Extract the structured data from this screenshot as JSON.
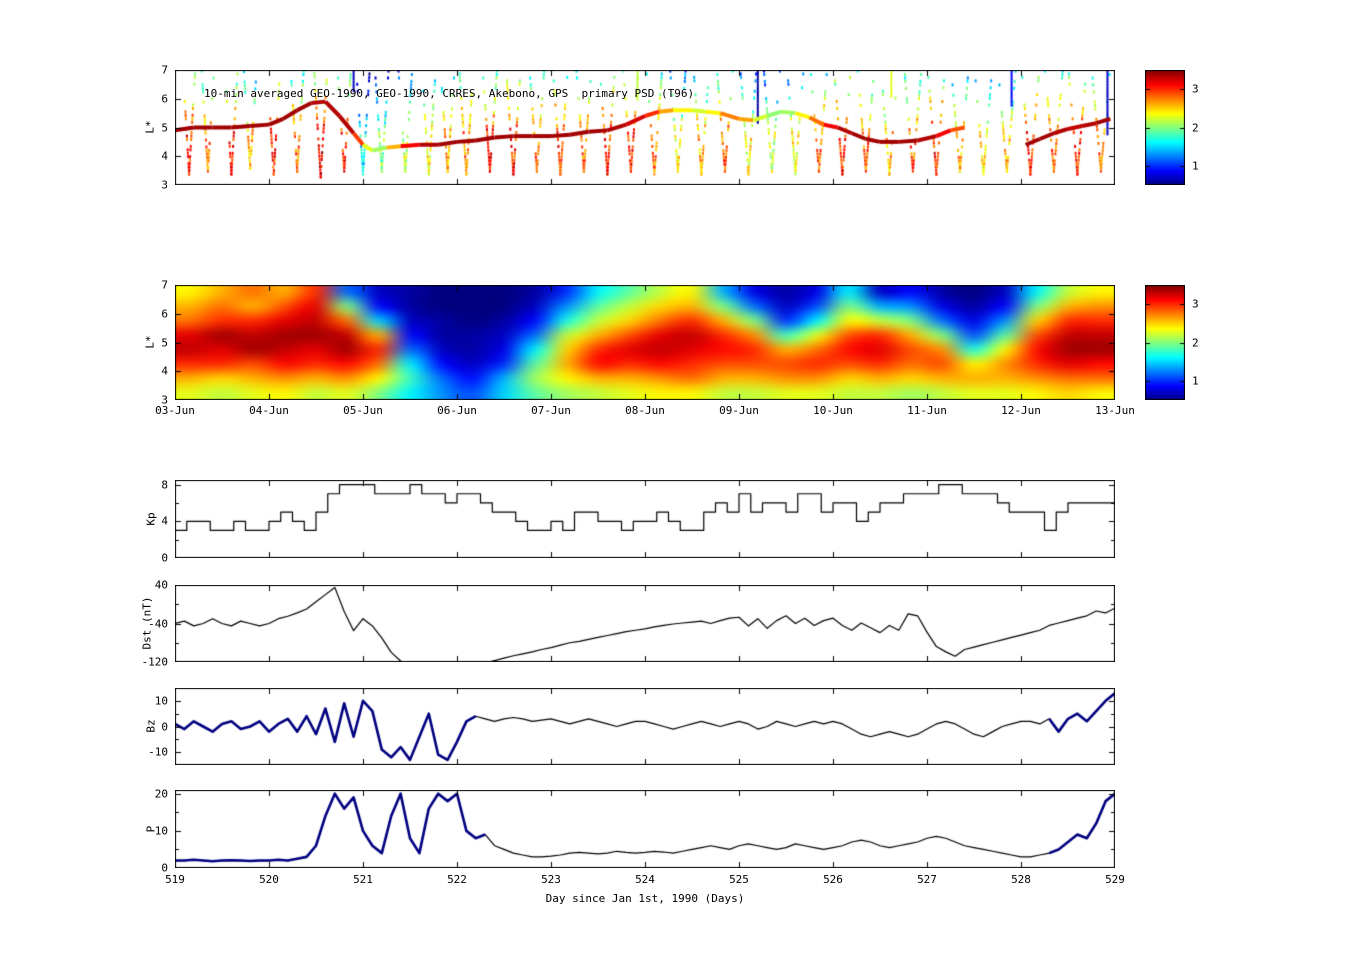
{
  "figure": {
    "background": "#ffffff",
    "accent_line_color": "#000080",
    "line_color": "#000000"
  },
  "xaxis": {
    "label": "Day since Jan 1st, 1990 (Days)",
    "tick_labels": [
      "519",
      "520",
      "521",
      "522",
      "523",
      "524",
      "525",
      "526",
      "527",
      "528",
      "529"
    ]
  },
  "chart_data": [
    {
      "id": "psd-scatter",
      "type": "scatter",
      "title": "10-min averaged GEO-1990, GEO-1990, CRRES, Akebono, GPS  primary PSD (T96)",
      "ylabel": "L*",
      "xlim": [
        519,
        529
      ],
      "ylim": [
        3,
        7
      ],
      "yticks": [
        3,
        4,
        5,
        6,
        7
      ],
      "colorbar": {
        "vmin": 0.5,
        "vmax": 3.5,
        "ticks": [
          1,
          2,
          3
        ]
      },
      "tracks": [
        [
          [
            519.0,
            4.9,
            3.4
          ],
          [
            519.2,
            5.0,
            3.4
          ],
          [
            519.4,
            5.0,
            3.4
          ],
          [
            519.6,
            5.0,
            3.4
          ],
          [
            519.8,
            5.05,
            3.4
          ],
          [
            520.0,
            5.1,
            3.4
          ],
          [
            520.15,
            5.3,
            3.4
          ],
          [
            520.3,
            5.6,
            3.4
          ],
          [
            520.45,
            5.85,
            3.4
          ],
          [
            520.6,
            5.9,
            3.3
          ],
          [
            520.75,
            5.4,
            3.4
          ],
          [
            520.9,
            4.8,
            3.3
          ],
          [
            521.0,
            4.4,
            2.6
          ],
          [
            521.1,
            4.2,
            2.0
          ],
          [
            521.25,
            4.3,
            2.2
          ],
          [
            521.4,
            4.35,
            3.0
          ],
          [
            521.6,
            4.4,
            3.3
          ],
          [
            521.8,
            4.4,
            3.4
          ],
          [
            522.0,
            4.5,
            3.4
          ],
          [
            522.2,
            4.55,
            3.4
          ],
          [
            522.4,
            4.65,
            3.4
          ],
          [
            522.6,
            4.7,
            3.4
          ],
          [
            522.8,
            4.7,
            3.4
          ],
          [
            523.0,
            4.7,
            3.4
          ],
          [
            523.2,
            4.75,
            3.4
          ],
          [
            523.4,
            4.85,
            3.4
          ],
          [
            523.6,
            4.9,
            3.4
          ],
          [
            523.8,
            5.1,
            3.3
          ],
          [
            524.0,
            5.4,
            3.2
          ],
          [
            524.15,
            5.55,
            2.8
          ],
          [
            524.3,
            5.6,
            2.5
          ],
          [
            524.5,
            5.6,
            2.3
          ],
          [
            524.65,
            5.55,
            2.2
          ],
          [
            524.8,
            5.5,
            2.6
          ],
          [
            525.0,
            5.3,
            2.9
          ],
          [
            525.15,
            5.25,
            2.4
          ],
          [
            525.3,
            5.4,
            2.1
          ],
          [
            525.45,
            5.55,
            2.0
          ],
          [
            525.6,
            5.5,
            2.2
          ],
          [
            525.75,
            5.35,
            2.6
          ],
          [
            525.9,
            5.1,
            3.0
          ],
          [
            526.05,
            5.0,
            3.3
          ],
          [
            526.2,
            4.8,
            3.4
          ],
          [
            526.35,
            4.6,
            3.4
          ],
          [
            526.5,
            4.5,
            3.4
          ],
          [
            526.7,
            4.5,
            3.4
          ],
          [
            526.9,
            4.55,
            3.4
          ],
          [
            527.1,
            4.7,
            3.3
          ],
          [
            527.25,
            4.9,
            3.0
          ],
          [
            527.4,
            5.0,
            2.8
          ]
        ],
        [
          [
            528.05,
            4.4,
            3.4
          ],
          [
            528.2,
            4.6,
            3.4
          ],
          [
            528.35,
            4.8,
            3.4
          ],
          [
            528.5,
            4.95,
            3.3
          ],
          [
            528.65,
            5.05,
            3.3
          ],
          [
            528.8,
            5.15,
            3.4
          ],
          [
            528.95,
            5.3,
            3.4
          ]
        ]
      ],
      "passes": [
        [
          519.15,
          3.4,
          3.0
        ],
        [
          519.35,
          3.5,
          2.8
        ],
        [
          519.6,
          3.4,
          3.0
        ],
        [
          519.8,
          3.6,
          2.6
        ],
        [
          520.05,
          3.4,
          3.0
        ],
        [
          520.3,
          3.5,
          2.8
        ],
        [
          520.55,
          3.3,
          3.2
        ],
        [
          520.8,
          3.5,
          3.0
        ],
        [
          521.0,
          3.4,
          1.6
        ],
        [
          521.2,
          3.5,
          2.0
        ],
        [
          521.45,
          3.5,
          2.2
        ],
        [
          521.7,
          3.4,
          2.4
        ],
        [
          521.9,
          3.5,
          2.6
        ],
        [
          522.1,
          3.4,
          2.8
        ],
        [
          522.35,
          3.5,
          3.0
        ],
        [
          522.6,
          3.4,
          3.0
        ],
        [
          522.85,
          3.5,
          2.8
        ],
        [
          523.1,
          3.4,
          3.0
        ],
        [
          523.35,
          3.5,
          2.8
        ],
        [
          523.6,
          3.4,
          3.0
        ],
        [
          523.85,
          3.5,
          3.0
        ],
        [
          524.1,
          3.4,
          2.8
        ],
        [
          524.35,
          3.5,
          2.4
        ],
        [
          524.6,
          3.4,
          2.6
        ],
        [
          524.85,
          3.5,
          2.8
        ],
        [
          525.1,
          3.4,
          2.4
        ],
        [
          525.35,
          3.5,
          2.2
        ],
        [
          525.6,
          3.4,
          2.4
        ],
        [
          525.85,
          3.5,
          2.8
        ],
        [
          526.1,
          3.4,
          3.0
        ],
        [
          526.35,
          3.5,
          2.8
        ],
        [
          526.6,
          3.4,
          2.6
        ],
        [
          526.85,
          3.5,
          2.8
        ],
        [
          527.1,
          3.4,
          3.0
        ],
        [
          527.35,
          3.5,
          2.6
        ],
        [
          527.6,
          3.4,
          2.4
        ],
        [
          527.85,
          3.5,
          2.6
        ],
        [
          528.1,
          3.4,
          3.0
        ],
        [
          528.35,
          3.5,
          2.8
        ],
        [
          528.6,
          3.4,
          3.0
        ],
        [
          528.85,
          3.5,
          2.8
        ]
      ],
      "dashes": [
        [
          520.9,
          6.3,
          7.0,
          0.7
        ],
        [
          523.92,
          6.0,
          7.0,
          2.2
        ],
        [
          525.2,
          5.2,
          7.0,
          0.6
        ],
        [
          526.62,
          6.1,
          7.0,
          2.3
        ],
        [
          527.9,
          5.8,
          7.0,
          0.9
        ],
        [
          528.92,
          4.8,
          7.0,
          0.7
        ]
      ]
    },
    {
      "id": "psd-heatmap",
      "type": "heatmap",
      "ylabel": "L*",
      "xlim": [
        519,
        529
      ],
      "ylim": [
        3,
        7
      ],
      "yticks": [
        3,
        4,
        5,
        6,
        7
      ],
      "xtick_labels": [
        "03-Jun",
        "04-Jun",
        "05-Jun",
        "06-Jun",
        "07-Jun",
        "08-Jun",
        "09-Jun",
        "10-Jun",
        "11-Jun",
        "12-Jun",
        "13-Jun"
      ],
      "colorbar": {
        "vmin": 0.5,
        "vmax": 3.5,
        "ticks": [
          1,
          2,
          3
        ]
      },
      "grid_rows_top_to_bottom": [
        [
          2.4,
          2.6,
          2.8,
          2.6,
          3.0,
          1.2,
          0.7,
          0.6,
          0.5,
          0.5,
          0.5,
          0.6,
          1.0,
          1.6,
          1.9,
          2.2,
          2.4,
          1.4,
          0.8,
          0.6,
          0.8,
          1.6,
          0.7,
          0.9,
          0.6,
          0.5,
          0.7,
          1.6,
          2.2,
          2.4
        ],
        [
          2.6,
          2.8,
          2.6,
          2.9,
          3.2,
          2.0,
          0.9,
          0.6,
          0.5,
          0.5,
          0.5,
          0.7,
          1.3,
          1.9,
          2.2,
          2.5,
          2.6,
          2.0,
          1.2,
          0.7,
          1.1,
          2.0,
          1.4,
          1.3,
          0.8,
          0.6,
          0.9,
          2.0,
          2.6,
          2.7
        ],
        [
          2.8,
          3.0,
          3.0,
          3.2,
          3.3,
          2.8,
          1.5,
          0.7,
          0.6,
          0.5,
          0.6,
          0.9,
          1.7,
          2.2,
          2.5,
          2.8,
          3.0,
          2.6,
          2.0,
          1.0,
          1.6,
          2.4,
          2.2,
          2.0,
          1.2,
          0.8,
          1.3,
          2.5,
          3.0,
          3.0
        ],
        [
          3.2,
          3.4,
          3.3,
          3.4,
          3.4,
          3.3,
          2.6,
          0.9,
          0.6,
          0.6,
          0.7,
          1.2,
          2.2,
          2.6,
          2.9,
          3.2,
          3.3,
          3.0,
          2.7,
          1.8,
          2.3,
          2.9,
          3.0,
          2.6,
          2.0,
          1.1,
          1.9,
          2.9,
          3.3,
          3.3
        ],
        [
          3.3,
          3.2,
          3.4,
          3.3,
          3.2,
          3.4,
          3.0,
          1.2,
          0.7,
          0.6,
          0.8,
          1.6,
          2.5,
          3.0,
          3.2,
          3.3,
          3.2,
          3.1,
          3.0,
          2.6,
          2.8,
          3.1,
          3.2,
          2.9,
          2.7,
          1.7,
          2.4,
          3.1,
          3.4,
          3.4
        ],
        [
          3.0,
          3.0,
          2.9,
          3.1,
          3.0,
          3.1,
          2.8,
          1.6,
          0.9,
          0.7,
          1.0,
          1.9,
          2.6,
          3.1,
          3.0,
          3.1,
          3.0,
          2.9,
          2.9,
          2.9,
          3.0,
          2.9,
          3.0,
          2.8,
          2.9,
          2.4,
          2.7,
          3.0,
          3.2,
          3.1
        ],
        [
          2.6,
          2.5,
          2.6,
          2.7,
          2.6,
          2.7,
          2.4,
          1.8,
          1.2,
          0.9,
          1.4,
          2.1,
          2.4,
          2.6,
          2.6,
          2.7,
          2.8,
          2.6,
          2.6,
          2.7,
          2.7,
          2.5,
          2.6,
          2.5,
          2.6,
          2.6,
          2.6,
          2.7,
          2.8,
          2.8
        ],
        [
          2.3,
          2.2,
          2.3,
          2.4,
          2.2,
          2.3,
          2.0,
          1.6,
          1.3,
          1.1,
          1.5,
          1.9,
          2.1,
          2.2,
          2.3,
          2.4,
          2.4,
          2.2,
          2.2,
          2.3,
          2.3,
          2.2,
          2.2,
          2.1,
          2.2,
          2.3,
          2.3,
          2.4,
          2.5,
          2.4
        ]
      ]
    },
    {
      "id": "kp",
      "type": "line",
      "ylabel": "Kp",
      "xlim": [
        519,
        529
      ],
      "ylim": [
        0,
        8.5
      ],
      "yticks": [
        0,
        4,
        8
      ],
      "yticks_minor": [
        2,
        6
      ],
      "step": true,
      "x0": 519,
      "dx": 0.125,
      "y": [
        3,
        4,
        4,
        3,
        3,
        4,
        3,
        3,
        4,
        5,
        4,
        3,
        5,
        7,
        8,
        8,
        8,
        7,
        7,
        7,
        8,
        7,
        7,
        6,
        7,
        7,
        6,
        5,
        5,
        4,
        3,
        3,
        4,
        3,
        5,
        5,
        4,
        4,
        3,
        4,
        4,
        5,
        4,
        3,
        3,
        5,
        6,
        5,
        7,
        5,
        6,
        6,
        5,
        7,
        7,
        5,
        6,
        6,
        4,
        5,
        6,
        6,
        7,
        7,
        7,
        8,
        8,
        7,
        7,
        7,
        6,
        5,
        5,
        5,
        3,
        5,
        6,
        6,
        6,
        6
      ]
    },
    {
      "id": "dst",
      "type": "line",
      "ylabel": "Dst (nT)",
      "xlim": [
        519,
        529
      ],
      "ylim": [
        -120,
        40
      ],
      "yticks": [
        -120,
        -40,
        40
      ],
      "yticks_minor": [
        -80,
        0
      ],
      "step": false,
      "x0": 519,
      "dx": 0.1,
      "y": [
        -40,
        -35,
        -45,
        -40,
        -30,
        -40,
        -45,
        -35,
        -40,
        -45,
        -40,
        -30,
        -25,
        -18,
        -10,
        5,
        20,
        35,
        -15,
        -55,
        -30,
        -45,
        -70,
        -100,
        -118,
        -126,
        -124,
        -127,
        -122,
        -126,
        -128,
        -124,
        -126,
        -122,
        -117,
        -112,
        -107,
        -103,
        -99,
        -94,
        -90,
        -85,
        -80,
        -77,
        -73,
        -69,
        -65,
        -61,
        -57,
        -54,
        -51,
        -47,
        -44,
        -41,
        -39,
        -37,
        -35,
        -40,
        -34,
        -29,
        -27,
        -45,
        -30,
        -50,
        -34,
        -24,
        -40,
        -29,
        -44,
        -34,
        -29,
        -44,
        -54,
        -39,
        -49,
        -59,
        -44,
        -54,
        -20,
        -24,
        -58,
        -88,
        -99,
        -108,
        -94,
        -89,
        -84,
        -79,
        -74,
        -69,
        -64,
        -59,
        -54,
        -44,
        -39,
        -34,
        -29,
        -24,
        -14,
        -18,
        -8
      ]
    },
    {
      "id": "bz",
      "type": "line",
      "ylabel": "Bz",
      "xlim": [
        519,
        529
      ],
      "ylim": [
        -15,
        15
      ],
      "yticks": [
        -10,
        0,
        10
      ],
      "yticks_minor": [
        -5,
        5
      ],
      "step": false,
      "x0": 519,
      "dx": 0.1,
      "thick_ranges": [
        [
          519,
          522.25
        ],
        [
          528.3,
          529
        ]
      ],
      "thick_color": "#000080",
      "y": [
        1,
        -1,
        2,
        0,
        -2,
        1,
        2,
        -1,
        0,
        2,
        -2,
        1,
        3,
        -2,
        4,
        -3,
        7,
        -6,
        9,
        -4,
        10,
        6,
        -9,
        -12,
        -8,
        -13,
        -4,
        5,
        -11,
        -13,
        -6,
        2,
        4,
        3,
        2,
        3,
        3.5,
        3,
        2,
        2.5,
        3,
        2,
        1,
        2,
        3,
        2,
        1,
        0,
        1,
        2,
        2,
        1,
        0,
        -1,
        0,
        1,
        2,
        1,
        0,
        1,
        2,
        1,
        -1,
        0,
        2,
        1,
        0,
        1,
        2,
        1,
        2,
        1,
        -1,
        -3,
        -4,
        -3,
        -2,
        -3,
        -4,
        -3,
        -1,
        1,
        2,
        1,
        -1,
        -3,
        -4,
        -2,
        0,
        1,
        2,
        2,
        1,
        3,
        -2,
        3,
        5,
        2,
        6,
        10,
        13
      ]
    },
    {
      "id": "p",
      "type": "line",
      "ylabel": "P",
      "xlim": [
        519,
        529
      ],
      "ylim": [
        0,
        21
      ],
      "yticks": [
        0,
        10,
        20
      ],
      "yticks_minor": [
        5,
        15
      ],
      "step": false,
      "x0": 519,
      "dx": 0.1,
      "thick_ranges": [
        [
          519,
          522.3
        ],
        [
          528.3,
          529
        ]
      ],
      "thick_color": "#000080",
      "y": [
        2,
        2,
        2.2,
        2,
        1.8,
        2,
        2.1,
        2,
        1.9,
        2,
        2,
        2.2,
        2,
        2.5,
        3,
        6,
        14,
        20,
        16,
        19,
        10,
        6,
        4,
        14,
        20,
        8,
        4,
        16,
        20,
        18,
        20,
        10,
        8,
        9,
        6,
        5,
        4,
        3.5,
        3,
        3,
        3.2,
        3.5,
        4,
        4.2,
        4,
        3.8,
        4,
        4.5,
        4.2,
        4,
        4.2,
        4.5,
        4.3,
        4,
        4.5,
        5,
        5.5,
        6,
        5.5,
        5,
        6,
        6.5,
        6,
        5.5,
        5,
        5.5,
        6.5,
        6,
        5.5,
        5,
        5.5,
        6,
        7,
        7.5,
        7,
        6,
        5.5,
        6,
        6.5,
        7,
        8,
        8.5,
        8,
        7,
        6,
        5.5,
        5,
        4.5,
        4,
        3.5,
        3,
        3,
        3.5,
        4,
        5,
        7,
        9,
        8,
        12,
        18,
        20
      ]
    }
  ]
}
